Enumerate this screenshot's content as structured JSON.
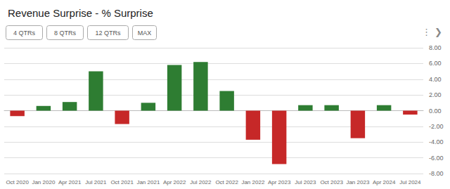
{
  "chart_data": {
    "type": "bar",
    "title": "Revenue Surprise - % Surprise",
    "categories": [
      "Oct 2020",
      "Jan 2020",
      "Apr 2021",
      "Jul 2021",
      "Oct 2021",
      "Jan 2021",
      "Apr 2022",
      "Jul 2022",
      "Oct 2022",
      "Jan 2022",
      "Apr 2023",
      "Jul 2023",
      "Oct 2023",
      "Jan 2023",
      "Apr 2024",
      "Jul 2024"
    ],
    "values": [
      -0.7,
      0.6,
      1.1,
      5.0,
      -1.7,
      1.0,
      5.8,
      6.2,
      2.5,
      -3.7,
      -6.8,
      0.7,
      0.7,
      -3.5,
      0.7,
      -0.5
    ],
    "colors": [
      "#c62828",
      "#2e7d32",
      "#2e7d32",
      "#2e7d32",
      "#c62828",
      "#2e7d32",
      "#2e7d32",
      "#2e7d32",
      "#2e7d32",
      "#c62828",
      "#c62828",
      "#2e7d32",
      "#2e7d32",
      "#c62828",
      "#2e7d32",
      "#c62828"
    ],
    "ylim": [
      -8.0,
      8.0
    ],
    "yticks": [
      {
        "value": -8.0,
        "label": "-8.00"
      },
      {
        "value": -6.0,
        "label": "-6.00"
      },
      {
        "value": -4.0,
        "label": "-4.00"
      },
      {
        "value": -2.0,
        "label": "-2.00"
      },
      {
        "value": 0.0,
        "label": "0.00"
      },
      {
        "value": 2.0,
        "label": "2.00"
      },
      {
        "value": 4.0,
        "label": "4.00"
      },
      {
        "value": 6.0,
        "label": "6.00"
      },
      {
        "value": 8.0,
        "label": "8.00"
      }
    ],
    "grid": true,
    "annotations": [
      "4 QTRs",
      "8 QTRs",
      "12 QTRs",
      "MAX",
      "⋮",
      "❯"
    ]
  }
}
